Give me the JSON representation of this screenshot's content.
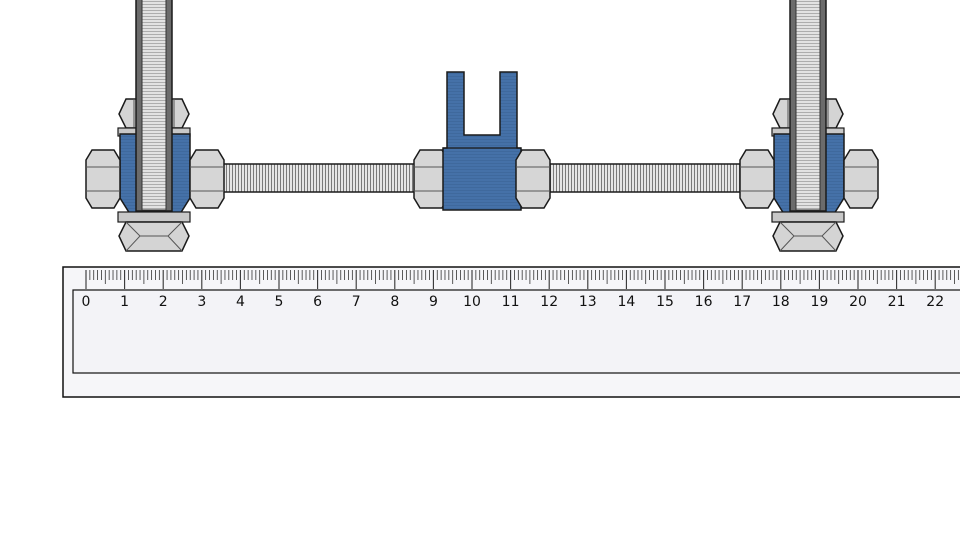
{
  "colors": {
    "part_blue": "#4571a8",
    "part_blue_light": "#6a93c6",
    "steel": "#d0d0d0",
    "steel_dark": "#9a9a9a",
    "outline": "#1a1a1a",
    "ruler_fill": "#f4f4f8",
    "ruler_border": "#111111"
  },
  "ruler": {
    "unit": "cm",
    "min": 0,
    "max": 22,
    "labels": [
      "0",
      "1",
      "2",
      "3",
      "4",
      "5",
      "6",
      "7",
      "8",
      "9",
      "10",
      "11",
      "12",
      "13",
      "14",
      "15",
      "16",
      "17",
      "18",
      "19",
      "20",
      "21",
      "22"
    ]
  }
}
